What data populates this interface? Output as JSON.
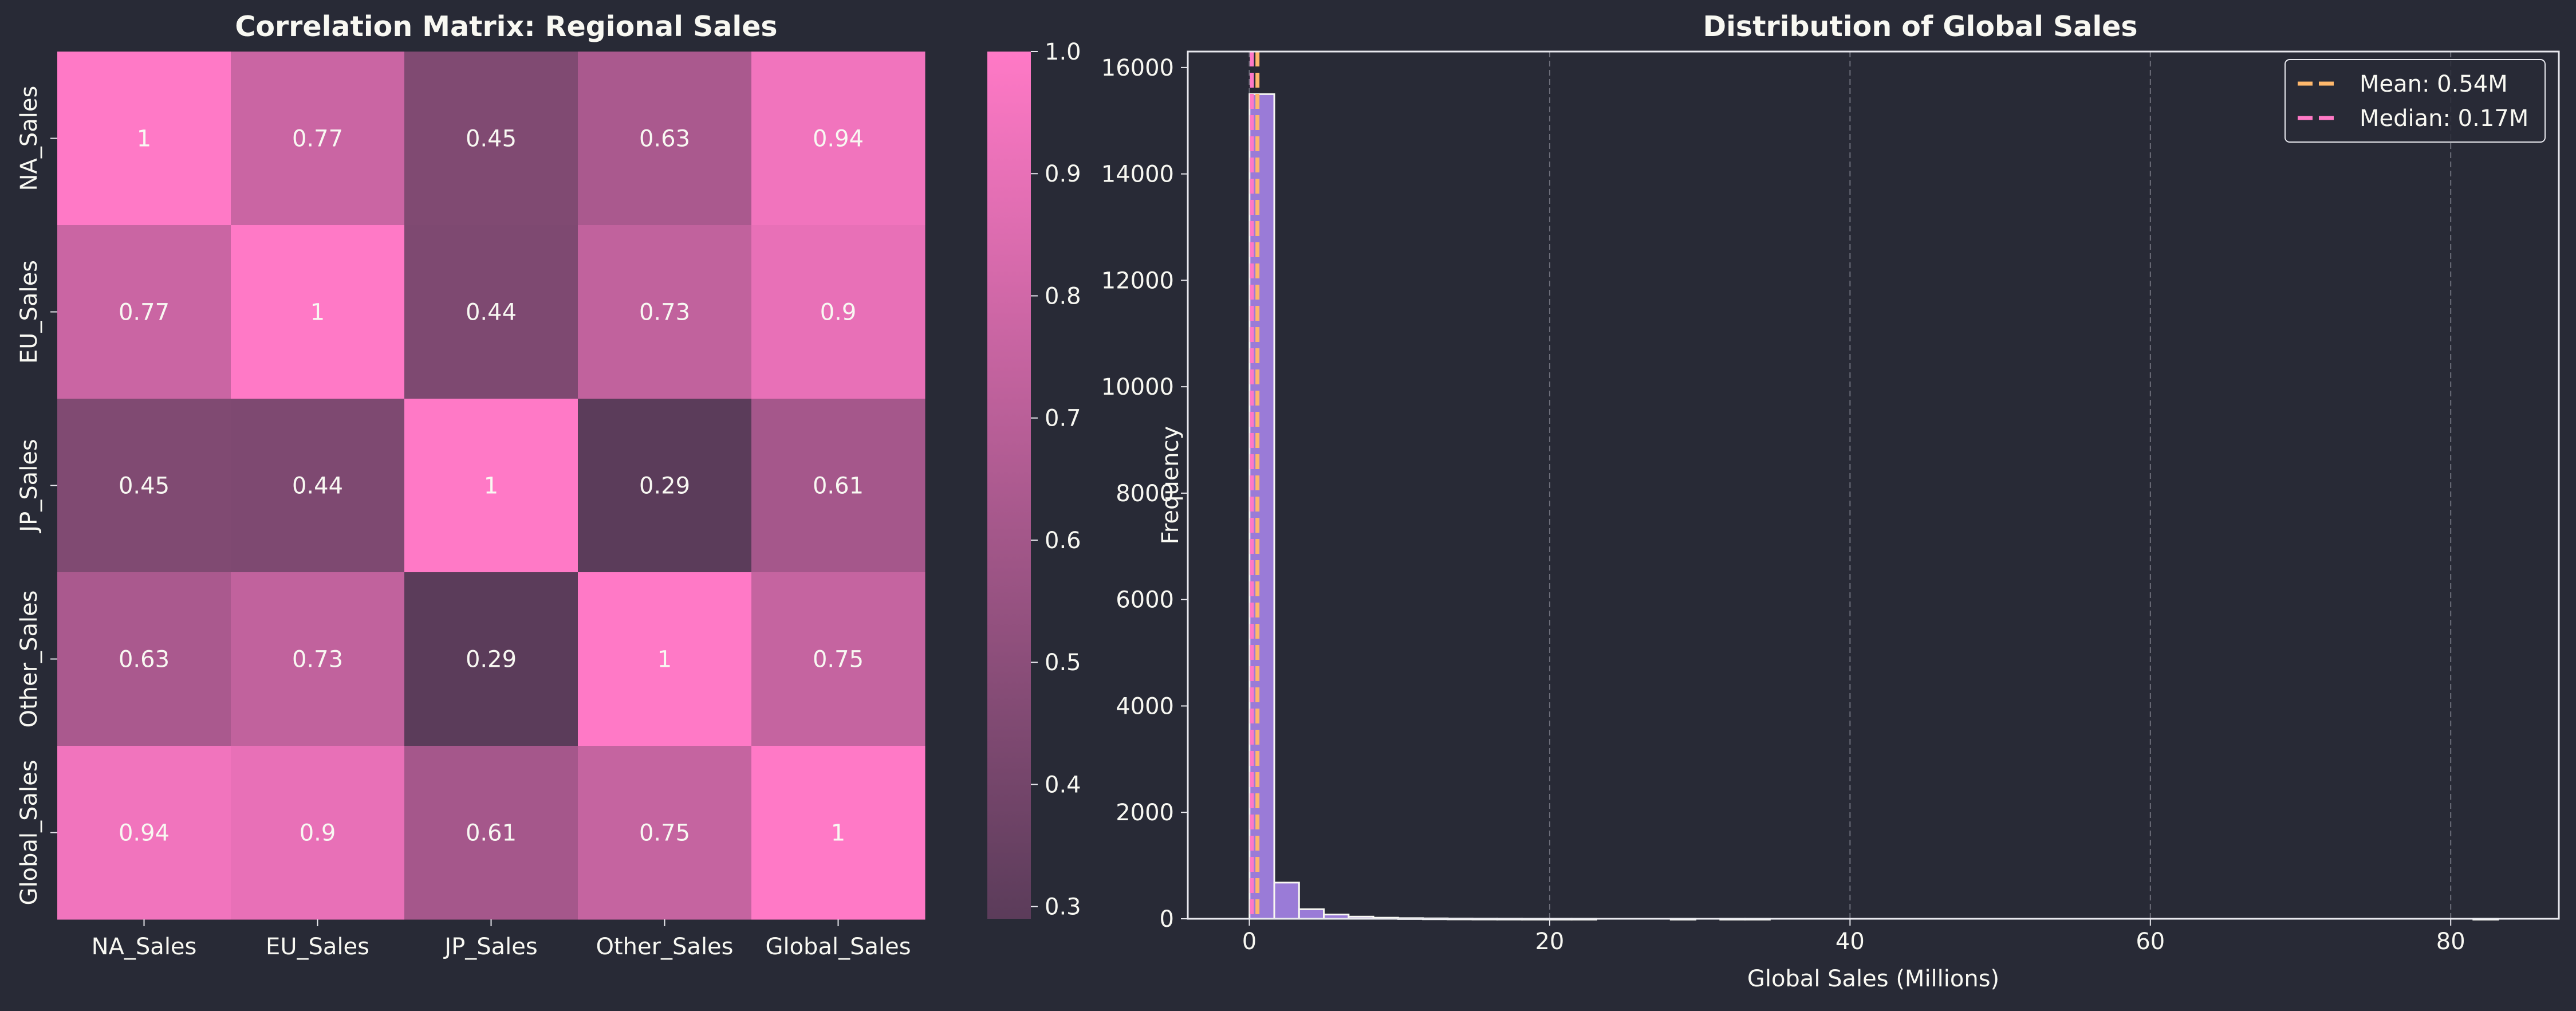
{
  "colors": {
    "background": "#282a36",
    "text": "#f8f8f2",
    "heatmap_low": "#5b3c5a",
    "heatmap_high": "#ff79c6",
    "histogram_bar": "#a07fe0",
    "histogram_edge": "#f8f8f2",
    "mean_line": "#ffb86c",
    "median_line": "#ff79c6",
    "grid": "#6d6e7a",
    "axis": "#e8e8ee"
  },
  "chart_data": [
    {
      "type": "heatmap",
      "title": "Correlation Matrix: Regional Sales",
      "x_labels": [
        "NA_Sales",
        "EU_Sales",
        "JP_Sales",
        "Other_Sales",
        "Global_Sales"
      ],
      "y_labels": [
        "NA_Sales",
        "EU_Sales",
        "JP_Sales",
        "Other_Sales",
        "Global_Sales"
      ],
      "values": [
        [
          1,
          0.77,
          0.45,
          0.63,
          0.94
        ],
        [
          0.77,
          1,
          0.44,
          0.73,
          0.9
        ],
        [
          0.45,
          0.44,
          1,
          0.29,
          0.61
        ],
        [
          0.63,
          0.73,
          0.29,
          1,
          0.75
        ],
        [
          0.94,
          0.9,
          0.61,
          0.75,
          1
        ]
      ],
      "cell_labels": [
        [
          "1",
          "0.77",
          "0.45",
          "0.63",
          "0.94"
        ],
        [
          "0.77",
          "1",
          "0.44",
          "0.73",
          "0.9"
        ],
        [
          "0.45",
          "0.44",
          "1",
          "0.29",
          "0.61"
        ],
        [
          "0.63",
          "0.73",
          "0.29",
          "1",
          "0.75"
        ],
        [
          "0.94",
          "0.9",
          "0.61",
          "0.75",
          "1"
        ]
      ],
      "colorbar": {
        "range": [
          0.29,
          1.0
        ],
        "ticks": [
          0.3,
          0.4,
          0.5,
          0.6,
          0.7,
          0.8,
          0.9,
          1.0
        ],
        "tick_labels": [
          "0.3",
          "0.4",
          "0.5",
          "0.6",
          "0.7",
          "0.8",
          "0.9",
          "1.0"
        ]
      }
    },
    {
      "type": "bar",
      "title": "Distribution of Global Sales",
      "xlabel": "Global Sales (Millions)",
      "ylabel": "Frequency",
      "xlim": [
        -4.1,
        87.2
      ],
      "ylim": [
        0,
        16300
      ],
      "x_ticks": [
        0,
        20,
        40,
        60,
        80
      ],
      "y_ticks": [
        0,
        2000,
        4000,
        6000,
        8000,
        10000,
        12000,
        14000,
        16000
      ],
      "x_grid": true,
      "y_grid": false,
      "bin_width": 1.65,
      "bins": [
        {
          "x0": 0.01,
          "count": 15500
        },
        {
          "x0": 1.66,
          "count": 680
        },
        {
          "x0": 3.31,
          "count": 180
        },
        {
          "x0": 4.96,
          "count": 80
        },
        {
          "x0": 6.61,
          "count": 40
        },
        {
          "x0": 8.26,
          "count": 20
        },
        {
          "x0": 9.91,
          "count": 12
        },
        {
          "x0": 11.56,
          "count": 8
        },
        {
          "x0": 13.21,
          "count": 5
        },
        {
          "x0": 14.86,
          "count": 3
        },
        {
          "x0": 16.51,
          "count": 2
        },
        {
          "x0": 18.16,
          "count": 1
        },
        {
          "x0": 19.81,
          "count": 1
        },
        {
          "x0": 21.46,
          "count": 1
        },
        {
          "x0": 23.11,
          "count": 0
        },
        {
          "x0": 24.76,
          "count": 0
        },
        {
          "x0": 26.41,
          "count": 0
        },
        {
          "x0": 28.06,
          "count": 1
        },
        {
          "x0": 29.71,
          "count": 0
        },
        {
          "x0": 31.36,
          "count": 1
        },
        {
          "x0": 33.01,
          "count": 1
        },
        {
          "x0": 34.66,
          "count": 0
        },
        {
          "x0": 36.31,
          "count": 0
        },
        {
          "x0": 37.96,
          "count": 0
        },
        {
          "x0": 39.61,
          "count": 0
        },
        {
          "x0": 81.51,
          "count": 1
        }
      ],
      "mean": 0.54,
      "median": 0.17,
      "legend_position": "top-right",
      "legend": [
        {
          "label": "Mean: 0.54M",
          "color": "#ffb86c"
        },
        {
          "label": "Median: 0.17M",
          "color": "#ff79c6"
        }
      ]
    }
  ]
}
